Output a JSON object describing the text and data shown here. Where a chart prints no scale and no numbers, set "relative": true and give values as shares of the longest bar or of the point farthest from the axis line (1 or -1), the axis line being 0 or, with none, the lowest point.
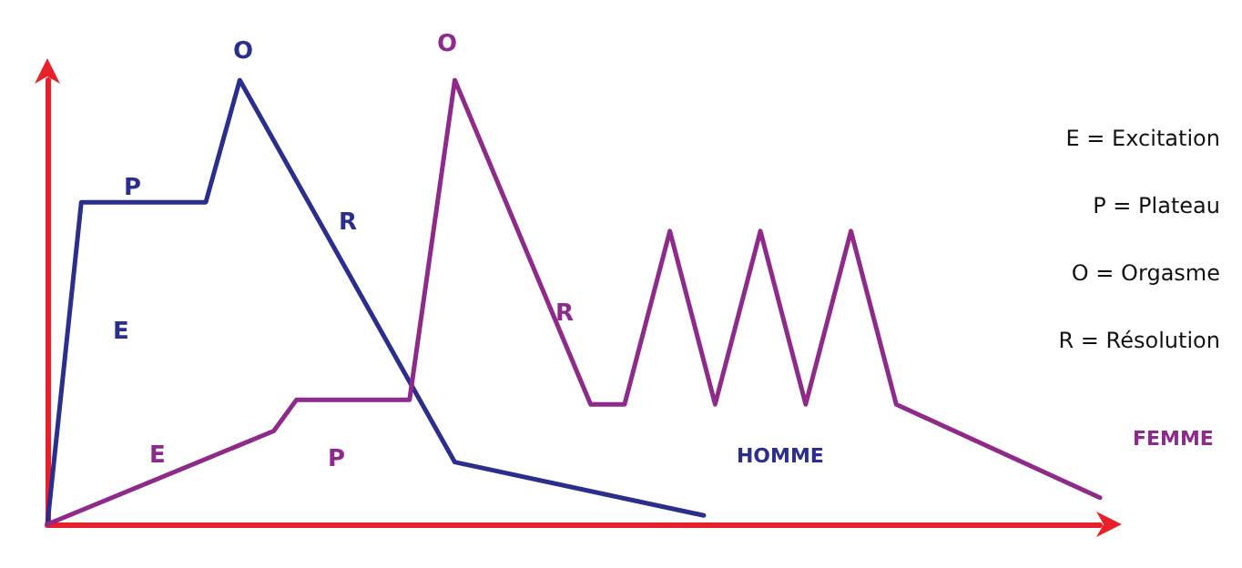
{
  "chart_data": {
    "type": "line",
    "relative": true,
    "grid": false,
    "legend": false,
    "marker": "none",
    "line_style": "solid",
    "categories": [
      null,
      null,
      null,
      null,
      null,
      null,
      null,
      null,
      null,
      null,
      null,
      null,
      null,
      null,
      null,
      null,
      null,
      null,
      null,
      null,
      null,
      null,
      null,
      null,
      null,
      null,
      null,
      null,
      null,
      null,
      null,
      null,
      null,
      null,
      null,
      null,
      null,
      null,
      null,
      null,
      null,
      null,
      null,
      null,
      null,
      null,
      null,
      null,
      null,
      null,
      null,
      null,
      null,
      null,
      null,
      null,
      null,
      null,
      null,
      null,
      null,
      null,
      null,
      null,
      null,
      null,
      null,
      null,
      null,
      null,
      null,
      null,
      null,
      null,
      null,
      null,
      null,
      null,
      null,
      null,
      null,
      null,
      null,
      null,
      null,
      null,
      null,
      null,
      null,
      null,
      null,
      null,
      null,
      null
    ],
    "series": [
      {
        "name": "HOMME",
        "color": "#2b2e8c",
        "values": [
          0,
          null,
          null,
          0.725,
          null,
          null,
          null,
          null,
          null,
          null,
          null,
          null,
          null,
          null,
          0.725,
          null,
          null,
          1,
          null,
          null,
          null,
          null,
          null,
          null,
          null,
          null,
          null,
          null,
          null,
          null,
          null,
          null,
          null,
          null,
          null,
          null,
          0.14,
          null,
          null,
          null,
          null,
          null,
          null,
          null,
          null,
          null,
          null,
          null,
          null,
          null,
          null,
          null,
          null,
          null,
          null,
          null,
          null,
          null,
          0.02,
          null,
          null,
          null,
          null,
          null,
          null,
          null,
          null,
          null,
          null,
          null,
          null,
          null,
          null,
          null,
          null,
          null,
          null,
          null,
          null,
          null,
          null,
          null,
          null,
          null,
          null,
          null,
          null,
          null,
          null,
          null,
          null,
          null,
          null,
          null
        ]
      },
      {
        "name": "FEMME",
        "color": "#8e2a8a",
        "values": [
          0,
          null,
          null,
          null,
          null,
          null,
          null,
          null,
          null,
          null,
          null,
          null,
          null,
          null,
          null,
          null,
          null,
          null,
          null,
          null,
          0.21,
          null,
          0.28,
          null,
          null,
          null,
          null,
          null,
          null,
          null,
          null,
          null,
          0.28,
          null,
          null,
          null,
          1,
          null,
          null,
          null,
          null,
          null,
          null,
          null,
          null,
          null,
          null,
          null,
          0.27,
          null,
          null,
          0.27,
          null,
          null,
          null,
          0.66,
          null,
          null,
          null,
          0.27,
          null,
          null,
          null,
          0.66,
          null,
          null,
          null,
          0.27,
          null,
          null,
          null,
          0.66,
          null,
          null,
          null,
          0.27,
          null,
          null,
          null,
          null,
          null,
          null,
          null,
          null,
          null,
          null,
          null,
          null,
          null,
          null,
          null,
          null,
          null,
          0.06
        ]
      }
    ],
    "annotations": [
      "E",
      "P",
      "O",
      "R",
      "E",
      "P",
      "O",
      "R",
      "E = Excitation",
      "P = Plateau",
      "O = Orgasme",
      "R = Résolution"
    ]
  }
}
